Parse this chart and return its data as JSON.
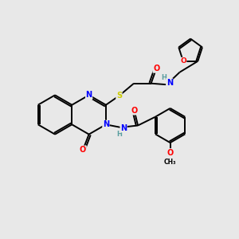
{
  "bg_color": "#e8e8e8",
  "C": "#000000",
  "N": "#0000ff",
  "O": "#ff0000",
  "S": "#cccc00",
  "H": "#5a9ea0",
  "lw": 1.4,
  "fs": 7.0
}
